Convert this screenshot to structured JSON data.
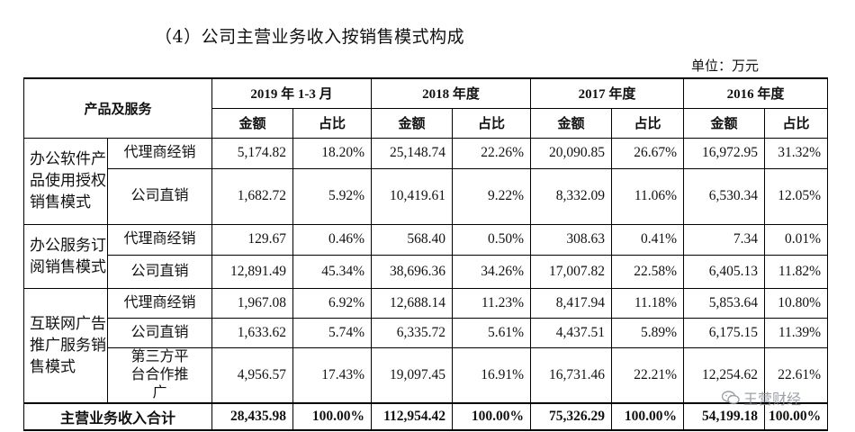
{
  "title": "（4）公司主营业务收入按销售模式构成",
  "unit": "单位：万元",
  "header": {
    "product_label": "产品及服务",
    "years": [
      "2019 年 1-3 月",
      "2018 年度",
      "2017 年度",
      "2016 年度"
    ],
    "amount_label": "金额",
    "ratio_label": "占比"
  },
  "groups": [
    {
      "name": "办公软件产品使用授权销售模式",
      "rows": [
        {
          "mode": "代理商经销",
          "values": [
            "5,174.82",
            "18.20%",
            "25,148.74",
            "22.26%",
            "20,090.85",
            "26.67%",
            "16,972.95",
            "31.32%"
          ]
        },
        {
          "mode": "公司直销",
          "values": [
            "1,682.72",
            "5.92%",
            "10,419.61",
            "9.22%",
            "8,332.09",
            "11.06%",
            "6,530.34",
            "12.05%"
          ]
        }
      ]
    },
    {
      "name": "办公服务订阅销售模式",
      "rows": [
        {
          "mode": "代理商经销",
          "values": [
            "129.67",
            "0.46%",
            "568.40",
            "0.50%",
            "308.63",
            "0.41%",
            "7.34",
            "0.01%"
          ]
        },
        {
          "mode": "公司直销",
          "values": [
            "12,891.49",
            "45.34%",
            "38,696.36",
            "34.26%",
            "17,007.82",
            "22.58%",
            "6,405.13",
            "11.82%"
          ]
        }
      ]
    },
    {
      "name": "互联网广告推广服务销售模式",
      "rows": [
        {
          "mode": "代理商经销",
          "values": [
            "1,967.08",
            "6.92%",
            "12,688.14",
            "11.23%",
            "8,417.94",
            "11.18%",
            "5,853.64",
            "10.80%"
          ]
        },
        {
          "mode": "公司直销",
          "values": [
            "1,633.62",
            "5.74%",
            "6,335.72",
            "5.61%",
            "4,437.51",
            "5.89%",
            "6,175.15",
            "11.39%"
          ]
        },
        {
          "mode": "第三方平台合作推广",
          "values": [
            "4,956.57",
            "17.43%",
            "19,097.45",
            "16.91%",
            "16,731.46",
            "22.21%",
            "12,254.62",
            "22.61%"
          ]
        }
      ]
    }
  ],
  "total": {
    "label": "主营业务收入合计",
    "values": [
      "28,435.98",
      "100.00%",
      "112,954.42",
      "100.00%",
      "75,326.29",
      "100.00%",
      "54,199.18",
      "100.00%"
    ]
  },
  "watermark": {
    "text": "王营财经",
    "icon": "wechat-icon"
  }
}
